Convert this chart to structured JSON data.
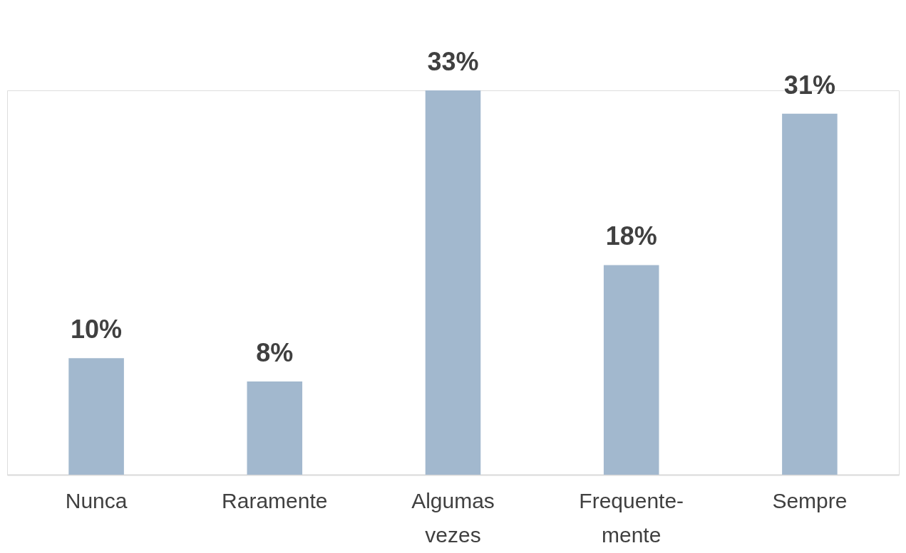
{
  "chart_data": {
    "type": "bar",
    "categories": [
      "Nunca",
      "Raramente",
      "Algumas vezes",
      "Frequente-mente",
      "Sempre"
    ],
    "values": [
      10,
      8,
      33,
      18,
      31
    ],
    "value_labels": [
      "10%",
      "8%",
      "33%",
      "18%",
      "31%"
    ],
    "color": "#a2b8ce"
  }
}
